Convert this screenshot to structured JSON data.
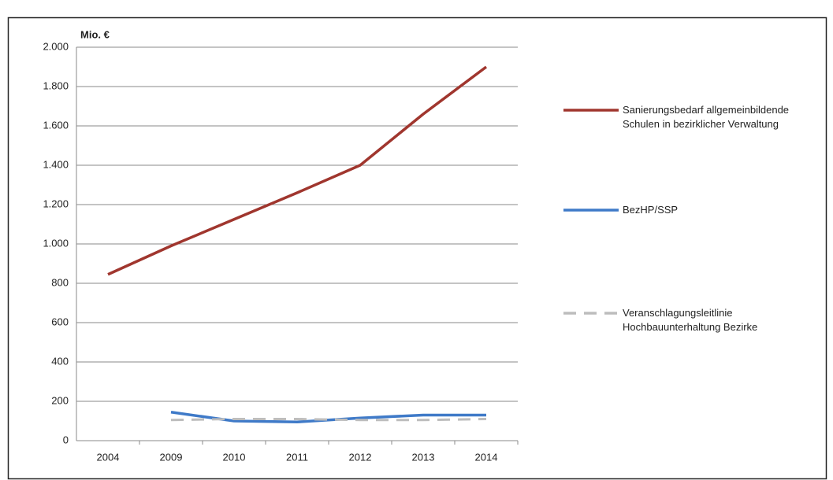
{
  "chart_data": {
    "type": "line",
    "y_unit_label": "Mio. €",
    "categories": [
      "2004",
      "2009",
      "2010",
      "2011",
      "2012",
      "2013",
      "2014"
    ],
    "series": [
      {
        "name": "Sanierungsbedarf allgemeinbildende Schulen in bezirklicher Verwaltung",
        "color": "#a0362e",
        "dash": false,
        "values": [
          845,
          990,
          1125,
          1260,
          1400,
          1660,
          1900
        ]
      },
      {
        "name": "BezHP/SSP",
        "color": "#3f7ac8",
        "dash": false,
        "values": [
          null,
          145,
          100,
          95,
          115,
          130,
          130
        ]
      },
      {
        "name": "Veranschlagungsleitlinie Hochbauunterhaltung Bezirke",
        "color": "#bdbdbd",
        "dash": true,
        "values": [
          null,
          105,
          110,
          110,
          105,
          105,
          110
        ]
      }
    ],
    "ylim": [
      0,
      2000
    ],
    "yticks": [
      0,
      200,
      400,
      600,
      800,
      {
        "value": 1000,
        "label": "1.000"
      },
      {
        "value": 1200,
        "label": "1.200"
      },
      {
        "value": 1400,
        "label": "1.400"
      },
      {
        "value": 1600,
        "label": "1.600"
      },
      {
        "value": 1800,
        "label": "1.800"
      },
      {
        "value": 2000,
        "label": "2.000"
      }
    ],
    "grid": true,
    "legend": "right"
  }
}
